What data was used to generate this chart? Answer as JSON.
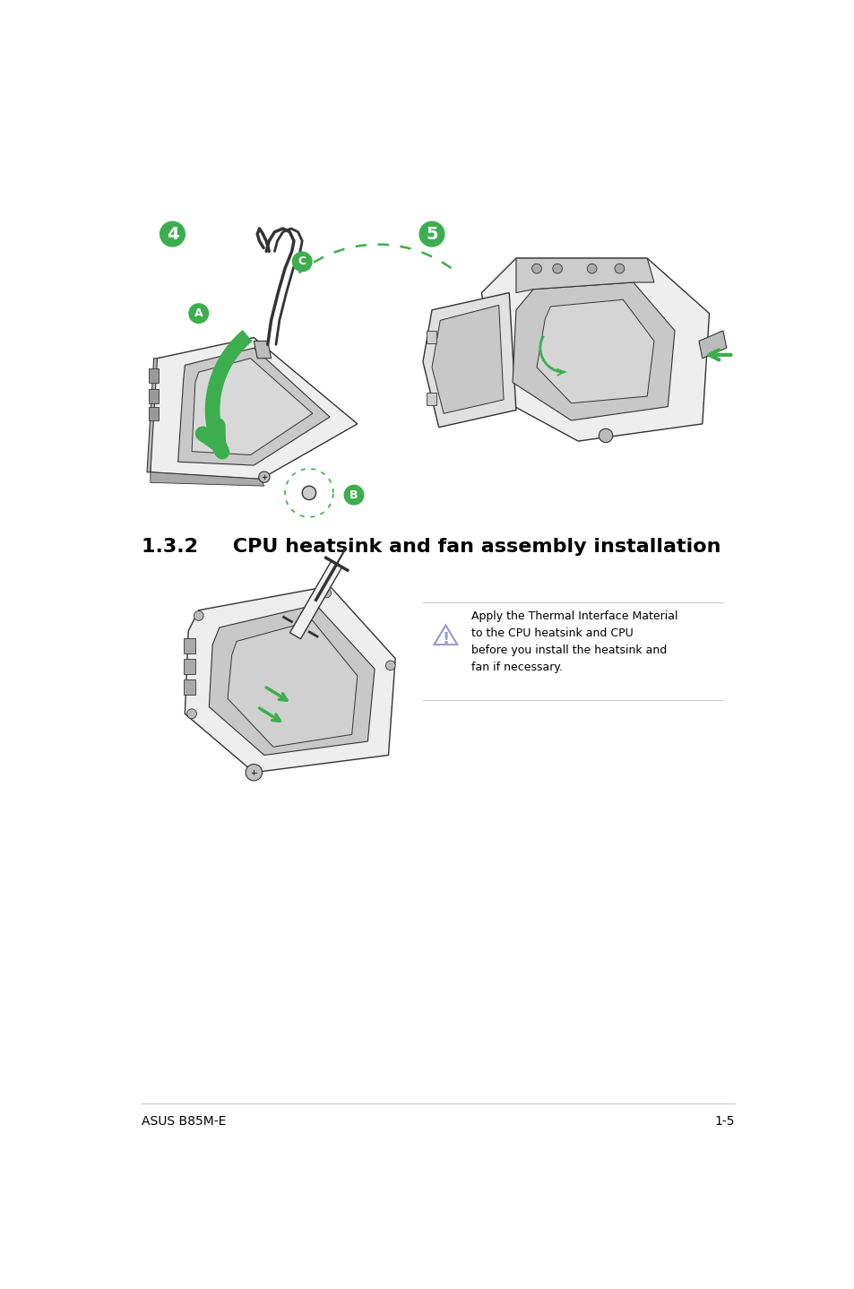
{
  "bg_color": "#ffffff",
  "title_section": "1.3.2     CPU heatsink and fan assembly installation",
  "footer_left": "ASUS B85M-E",
  "footer_right": "1-5",
  "step4_label": "4",
  "step5_label": "5",
  "label_A": "A",
  "label_B": "B",
  "label_C": "C",
  "warning_text": "Apply the Thermal Interface Material\nto the CPU heatsink and CPU\nbefore you install the heatsink and\nfan if necessary.",
  "green_color": "#3dae4e",
  "gray_color": "#888888",
  "light_gray": "#cccccc",
  "mid_gray": "#aaaaaa",
  "dark_gray": "#333333",
  "socket_gray": "#c8c8c8",
  "text_color": "#000000",
  "title_fontsize": 16,
  "footer_fontsize": 10,
  "label_fontsize": 10,
  "warning_fontsize": 9,
  "warn_line_color": "#9999cc"
}
